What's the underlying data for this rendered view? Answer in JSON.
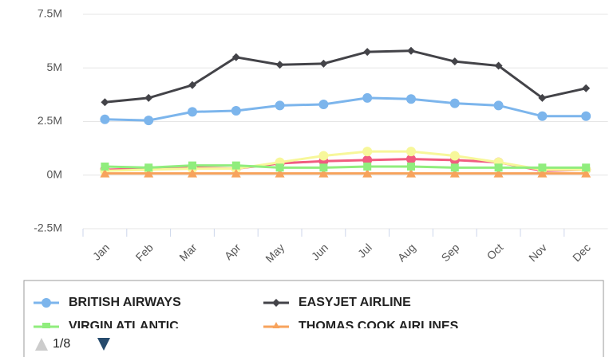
{
  "chart_data": {
    "type": "line",
    "categories": [
      "Jan",
      "Feb",
      "Mar",
      "Apr",
      "May",
      "Jun",
      "Jul",
      "Aug",
      "Sep",
      "Oct",
      "Nov",
      "Dec"
    ],
    "ylim": [
      -2500000,
      7500000
    ],
    "yticks": [
      {
        "value": -2500000,
        "label": "-2.5M"
      },
      {
        "value": 0,
        "label": "0M"
      },
      {
        "value": 2500000,
        "label": "2.5M"
      },
      {
        "value": 5000000,
        "label": "5M"
      },
      {
        "value": 7500000,
        "label": "7.5M"
      }
    ],
    "grid": true,
    "legend_pager": "1/8",
    "series": [
      {
        "name": "BRITISH AIRWAYS",
        "color": "#7cb5ec",
        "marker": "circle",
        "values": [
          2600000,
          2550000,
          2950000,
          3000000,
          3250000,
          3300000,
          3600000,
          3550000,
          3350000,
          3250000,
          2750000,
          2750000
        ]
      },
      {
        "name": "EASYJET AIRLINE",
        "color": "#434348",
        "marker": "diamond",
        "values": [
          3400000,
          3600000,
          4200000,
          5500000,
          5150000,
          5200000,
          5750000,
          5800000,
          5300000,
          5100000,
          3600000,
          4050000
        ]
      },
      {
        "name": "VIRGIN ATLANTIC",
        "color": "#90ed7d",
        "marker": "square",
        "values": [
          400000,
          350000,
          450000,
          450000,
          350000,
          350000,
          400000,
          400000,
          350000,
          350000,
          350000,
          350000
        ]
      },
      {
        "name": "THOMAS COOK AIRLINES",
        "color": "#f7a35c",
        "marker": "triangle",
        "values": [
          80000,
          80000,
          80000,
          80000,
          80000,
          80000,
          80000,
          80000,
          80000,
          80000,
          80000,
          80000
        ]
      },
      {
        "color": "#f7f79a",
        "marker": "circle",
        "values": [
          200000,
          250000,
          300000,
          300000,
          600000,
          900000,
          1100000,
          1100000,
          900000,
          600000,
          250000,
          250000
        ]
      },
      {
        "color": "#f15c80",
        "marker": "circle",
        "values": [
          250000,
          300000,
          350000,
          300000,
          550000,
          650000,
          700000,
          750000,
          700000,
          600000,
          200000,
          250000
        ]
      }
    ]
  }
}
